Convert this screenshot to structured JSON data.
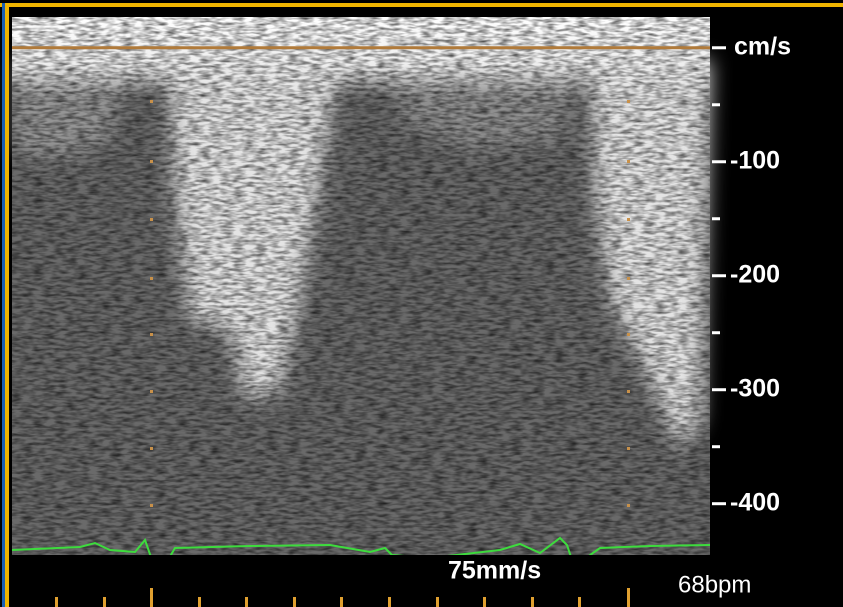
{
  "scale": {
    "unit": "cm/s",
    "ylim": [
      27,
      -445
    ],
    "baseline": 0,
    "ticks": [
      -100,
      -200,
      -300,
      -400
    ],
    "minor_ticks": [
      -50,
      -150,
      -250,
      -350
    ]
  },
  "sweep_speed": "75mm/s",
  "heart_rate": "68bpm"
}
